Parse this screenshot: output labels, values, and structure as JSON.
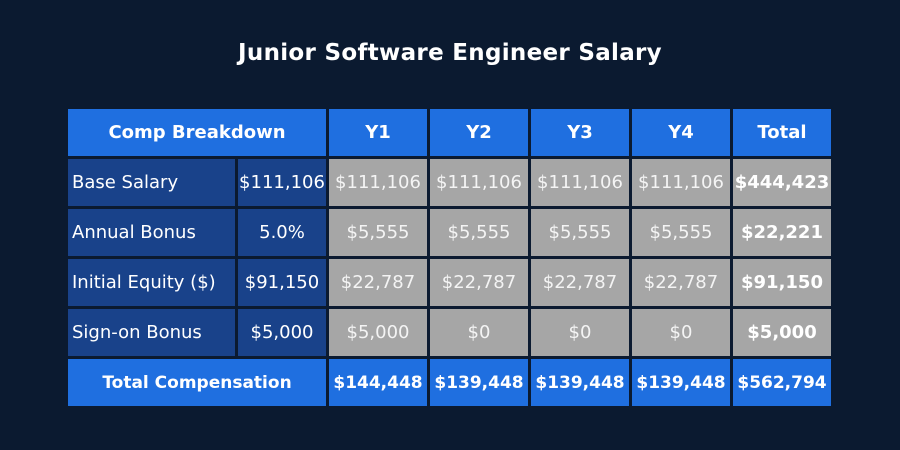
{
  "title": "Junior Software Engineer Salary",
  "colors": {
    "background": "#0b1a30",
    "header": "#1f6fe0",
    "row_label": "#19428a",
    "value_cell": "#a6a6a6"
  },
  "chart_data": {
    "type": "table",
    "title": "Junior Software Engineer Salary",
    "header": {
      "breakdown": "Comp Breakdown",
      "years": [
        "Y1",
        "Y2",
        "Y3",
        "Y4"
      ],
      "total": "Total"
    },
    "rows": [
      {
        "label": "Base Salary",
        "param": "$111,106",
        "values": [
          "$111,106",
          "$111,106",
          "$111,106",
          "$111,106"
        ],
        "total": "$444,423"
      },
      {
        "label": "Annual Bonus",
        "param": "5.0%",
        "values": [
          "$5,555",
          "$5,555",
          "$5,555",
          "$5,555"
        ],
        "total": "$22,221"
      },
      {
        "label": "Initial Equity ($)",
        "param": "$91,150",
        "values": [
          "$22,787",
          "$22,787",
          "$22,787",
          "$22,787"
        ],
        "total": "$91,150"
      },
      {
        "label": "Sign-on Bonus",
        "param": "$5,000",
        "values": [
          "$5,000",
          "$0",
          "$0",
          "$0"
        ],
        "total": "$5,000"
      }
    ],
    "footer": {
      "label": "Total Compensation",
      "values": [
        "$144,448",
        "$139,448",
        "$139,448",
        "$139,448"
      ],
      "total": "$562,794"
    }
  }
}
